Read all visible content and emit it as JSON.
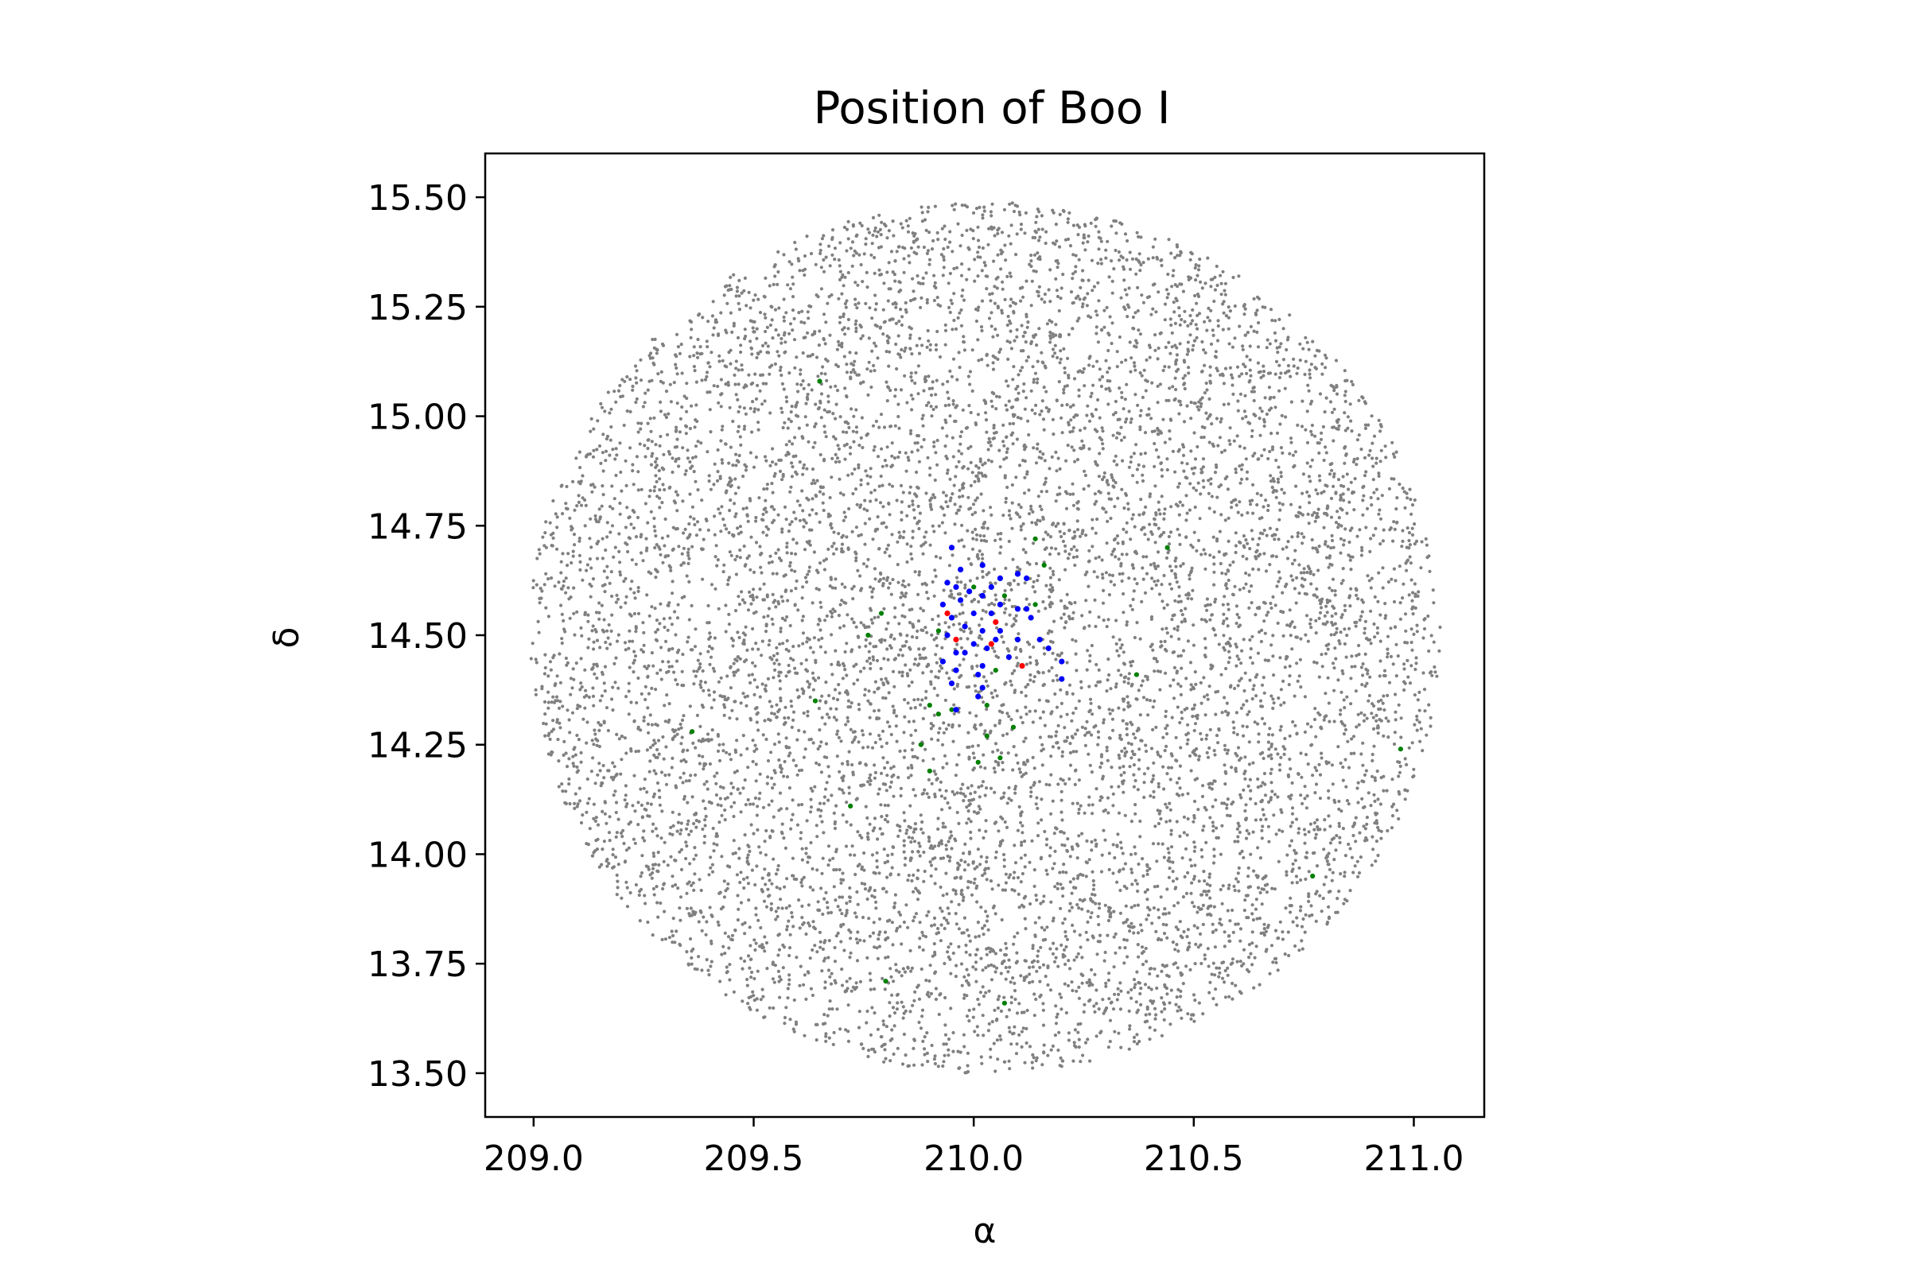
{
  "chart_data": {
    "type": "scatter",
    "title": "Position of Boo I",
    "xlabel": "α",
    "ylabel": "δ",
    "xlim": [
      208.89,
      211.16
    ],
    "ylim": [
      13.4,
      15.6
    ],
    "xticks": [
      209.0,
      209.5,
      210.0,
      210.5,
      211.0
    ],
    "xtick_labels": [
      "209.0",
      "209.5",
      "210.0",
      "210.5",
      "211.0"
    ],
    "yticks": [
      13.5,
      13.75,
      14.0,
      14.25,
      14.5,
      14.75,
      15.0,
      15.25,
      15.5
    ],
    "ytick_labels": [
      "13.50",
      "13.75",
      "14.00",
      "14.25",
      "14.50",
      "14.75",
      "15.00",
      "15.25",
      "15.50"
    ],
    "grid": false,
    "series": [
      {
        "color": "#808080",
        "marker_size": 3,
        "field": {
          "center": [
            210.025,
            14.495
          ],
          "radius_ra": 1.035,
          "radius_dec": 0.995,
          "count": 9000,
          "distribution": "uniform-disk"
        }
      },
      {
        "color": "#008000",
        "marker_size": 5,
        "points": [
          [
            209.65,
            15.08
          ],
          [
            210.44,
            14.7
          ],
          [
            210.14,
            14.72
          ],
          [
            210.16,
            14.66
          ],
          [
            209.79,
            14.55
          ],
          [
            209.76,
            14.5
          ],
          [
            210.14,
            14.57
          ],
          [
            210.07,
            14.59
          ],
          [
            210.0,
            14.61
          ],
          [
            209.92,
            14.51
          ],
          [
            210.37,
            14.41
          ],
          [
            210.05,
            14.42
          ],
          [
            209.64,
            14.35
          ],
          [
            209.9,
            14.34
          ],
          [
            209.92,
            14.32
          ],
          [
            209.95,
            14.33
          ],
          [
            210.03,
            14.34
          ],
          [
            209.36,
            14.28
          ],
          [
            210.09,
            14.29
          ],
          [
            210.03,
            14.27
          ],
          [
            209.88,
            14.25
          ],
          [
            210.97,
            14.24
          ],
          [
            210.06,
            14.22
          ],
          [
            210.01,
            14.21
          ],
          [
            209.9,
            14.19
          ],
          [
            209.72,
            14.11
          ],
          [
            210.77,
            13.95
          ],
          [
            209.8,
            13.71
          ],
          [
            210.07,
            13.66
          ]
        ]
      },
      {
        "color": "#0000ff",
        "marker_size": 6,
        "points": [
          [
            209.95,
            14.7
          ],
          [
            210.02,
            14.66
          ],
          [
            209.97,
            14.65
          ],
          [
            210.06,
            14.63
          ],
          [
            210.1,
            14.64
          ],
          [
            210.12,
            14.63
          ],
          [
            209.94,
            14.62
          ],
          [
            209.96,
            14.61
          ],
          [
            210.04,
            14.61
          ],
          [
            209.99,
            14.6
          ],
          [
            210.02,
            14.59
          ],
          [
            209.97,
            14.58
          ],
          [
            209.93,
            14.57
          ],
          [
            210.06,
            14.57
          ],
          [
            210.1,
            14.56
          ],
          [
            210.12,
            14.56
          ],
          [
            210.0,
            14.55
          ],
          [
            209.95,
            14.54
          ],
          [
            210.04,
            14.55
          ],
          [
            210.13,
            14.54
          ],
          [
            209.98,
            14.52
          ],
          [
            210.06,
            14.51
          ],
          [
            210.02,
            14.51
          ],
          [
            209.94,
            14.5
          ],
          [
            210.1,
            14.49
          ],
          [
            210.15,
            14.49
          ],
          [
            210.0,
            14.48
          ],
          [
            210.05,
            14.49
          ],
          [
            210.17,
            14.47
          ],
          [
            209.98,
            14.46
          ],
          [
            210.03,
            14.47
          ],
          [
            209.96,
            14.46
          ],
          [
            210.08,
            14.45
          ],
          [
            209.93,
            14.44
          ],
          [
            210.2,
            14.44
          ],
          [
            210.02,
            14.43
          ],
          [
            209.96,
            14.42
          ],
          [
            210.01,
            14.41
          ],
          [
            210.2,
            14.4
          ],
          [
            209.95,
            14.39
          ],
          [
            210.02,
            14.38
          ],
          [
            210.01,
            14.36
          ],
          [
            209.96,
            14.33
          ]
        ]
      },
      {
        "color": "#ff0000",
        "marker_size": 6,
        "points": [
          [
            209.94,
            14.55
          ],
          [
            210.05,
            14.53
          ],
          [
            209.96,
            14.49
          ],
          [
            210.04,
            14.48
          ],
          [
            210.11,
            14.43
          ]
        ]
      }
    ]
  }
}
